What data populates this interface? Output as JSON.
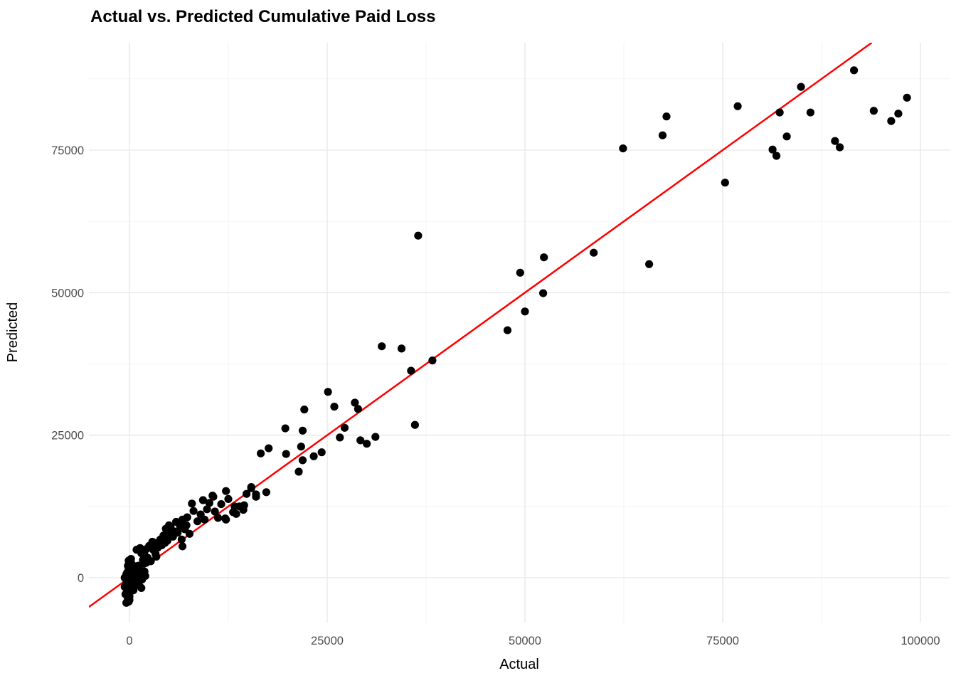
{
  "chart_data": {
    "type": "scatter",
    "title": "Actual vs. Predicted Cumulative Paid Loss",
    "xlabel": "Actual",
    "ylabel": "Predicted",
    "x_ticks": [
      0,
      25000,
      50000,
      75000,
      100000
    ],
    "y_ticks": [
      0,
      25000,
      50000,
      75000
    ],
    "x_minor_gridlines": [
      12500,
      37500,
      62500,
      87500
    ],
    "y_minor_gridlines": [
      12500,
      37500,
      62500,
      87500
    ],
    "xlim": [
      -5126,
      103777
    ],
    "ylim": [
      -7862,
      93845
    ],
    "grid": "major+minor",
    "legend": false,
    "point_color": "#000000",
    "point_radius": 5.6,
    "major_grid_color": "#EBEBEB",
    "minor_grid_color": "#F2F2F2",
    "tick_label_color": "#4D4D4D",
    "background_color": "#FFFFFF",
    "reference_line": {
      "type": "identity",
      "slope": 1,
      "intercept": 0,
      "color": "#FF0000",
      "width": 2.5
    },
    "points": [
      [
        91600,
        89000
      ],
      [
        84900,
        86100
      ],
      [
        82200,
        81600
      ],
      [
        86100,
        81600
      ],
      [
        98300,
        84200
      ],
      [
        94100,
        81900
      ],
      [
        97200,
        81400
      ],
      [
        96300,
        80100
      ],
      [
        83100,
        77400
      ],
      [
        89200,
        76600
      ],
      [
        89800,
        75500
      ],
      [
        81300,
        75100
      ],
      [
        81800,
        74000
      ],
      [
        75300,
        69300
      ],
      [
        76900,
        82700
      ],
      [
        62400,
        75300
      ],
      [
        67900,
        80900
      ],
      [
        67400,
        77600
      ],
      [
        65700,
        55000
      ],
      [
        58700,
        57000
      ],
      [
        52400,
        56200
      ],
      [
        49400,
        53500
      ],
      [
        52300,
        49900
      ],
      [
        50000,
        46700
      ],
      [
        47800,
        43400
      ],
      [
        36500,
        60000
      ],
      [
        38300,
        38100
      ],
      [
        35600,
        36300
      ],
      [
        34400,
        40200
      ],
      [
        31900,
        40600
      ],
      [
        36100,
        26800
      ],
      [
        25100,
        32600
      ],
      [
        25900,
        30000
      ],
      [
        28500,
        30700
      ],
      [
        28900,
        29600
      ],
      [
        22100,
        29500
      ],
      [
        19700,
        26200
      ],
      [
        21900,
        25800
      ],
      [
        27200,
        26300
      ],
      [
        26600,
        24600
      ],
      [
        29200,
        24100
      ],
      [
        30000,
        23500
      ],
      [
        31100,
        24700
      ],
      [
        16600,
        21800
      ],
      [
        17600,
        22700
      ],
      [
        19800,
        21700
      ],
      [
        21700,
        23000
      ],
      [
        23300,
        21300
      ],
      [
        24300,
        22000
      ],
      [
        21900,
        20600
      ],
      [
        21400,
        18600
      ],
      [
        13100,
        11500
      ],
      [
        13900,
        12500
      ],
      [
        14400,
        11900
      ],
      [
        13300,
        12500
      ],
      [
        14500,
        12700
      ],
      [
        13500,
        11200
      ],
      [
        15400,
        15700
      ],
      [
        17300,
        15000
      ],
      [
        12500,
        13800
      ],
      [
        16000,
        14200
      ],
      [
        14800,
        14700
      ],
      [
        15400,
        15900
      ],
      [
        16000,
        14600
      ],
      [
        7900,
        13000
      ],
      [
        9300,
        13600
      ],
      [
        10500,
        14400
      ],
      [
        8100,
        11700
      ],
      [
        9000,
        11100
      ],
      [
        9800,
        12000
      ],
      [
        10800,
        11600
      ],
      [
        11200,
        10500
      ],
      [
        12200,
        10200
      ],
      [
        12100,
        10400
      ],
      [
        10600,
        14200
      ],
      [
        12200,
        15200
      ],
      [
        9500,
        10200
      ],
      [
        8600,
        9900
      ],
      [
        11600,
        12900
      ],
      [
        10100,
        13100
      ],
      [
        4600,
        8600
      ],
      [
        5000,
        9200
      ],
      [
        5700,
        8100
      ],
      [
        5000,
        7700
      ],
      [
        6700,
        10200
      ],
      [
        7200,
        9200
      ],
      [
        6400,
        9000
      ],
      [
        4800,
        6500
      ],
      [
        5500,
        7200
      ],
      [
        6100,
        7900
      ],
      [
        6700,
        5500
      ],
      [
        7600,
        7700
      ],
      [
        7000,
        8500
      ],
      [
        5900,
        9800
      ],
      [
        5200,
        8900
      ],
      [
        4300,
        7400
      ],
      [
        6600,
        6700
      ],
      [
        7300,
        10600
      ],
      [
        1000,
        4900
      ],
      [
        1350,
        5200
      ],
      [
        900,
        4900
      ],
      [
        1900,
        4000
      ],
      [
        2100,
        5000
      ],
      [
        3000,
        4900
      ],
      [
        2500,
        5600
      ],
      [
        3200,
        6100
      ],
      [
        3900,
        6700
      ],
      [
        4500,
        6100
      ],
      [
        2300,
        3500
      ],
      [
        2700,
        2900
      ],
      [
        3300,
        4200
      ],
      [
        1700,
        3100
      ],
      [
        2100,
        2600
      ],
      [
        3600,
        5300
      ],
      [
        4100,
        5700
      ],
      [
        1500,
        4300
      ],
      [
        2900,
        6300
      ],
      [
        3400,
        3700
      ],
      [
        800,
        -1300
      ],
      [
        1200,
        -800
      ],
      [
        1600,
        -300
      ],
      [
        900,
        200
      ],
      [
        1400,
        700
      ],
      [
        1900,
        1100
      ],
      [
        700,
        1600
      ],
      [
        1100,
        2100
      ],
      [
        1800,
        2500
      ],
      [
        1500,
        -1800
      ],
      [
        2000,
        300
      ],
      [
        1300,
        1300
      ],
      [
        -400,
        -4400
      ],
      [
        -200,
        -3800
      ],
      [
        0,
        -3300
      ],
      [
        -500,
        -2900
      ],
      [
        100,
        -2500
      ],
      [
        -300,
        -2100
      ],
      [
        200,
        -1800
      ],
      [
        -100,
        -1500
      ],
      [
        0,
        -1200
      ],
      [
        -400,
        -900
      ],
      [
        300,
        -700
      ],
      [
        -200,
        -400
      ],
      [
        100,
        -100
      ],
      [
        -500,
        100
      ],
      [
        0,
        300
      ],
      [
        200,
        600
      ],
      [
        -300,
        900
      ],
      [
        400,
        1200
      ],
      [
        -100,
        1500
      ],
      [
        100,
        1800
      ],
      [
        -200,
        2100
      ],
      [
        300,
        2400
      ],
      [
        0,
        2700
      ],
      [
        -100,
        3000
      ],
      [
        200,
        3300
      ],
      [
        -400,
        600
      ],
      [
        500,
        -2200
      ],
      [
        -600,
        -1600
      ],
      [
        600,
        2000
      ],
      [
        0,
        -3900
      ],
      [
        -300,
        -2700
      ],
      [
        400,
        -1000
      ],
      [
        -600,
        0
      ],
      [
        500,
        900
      ],
      [
        -100,
        -4200
      ]
    ]
  }
}
